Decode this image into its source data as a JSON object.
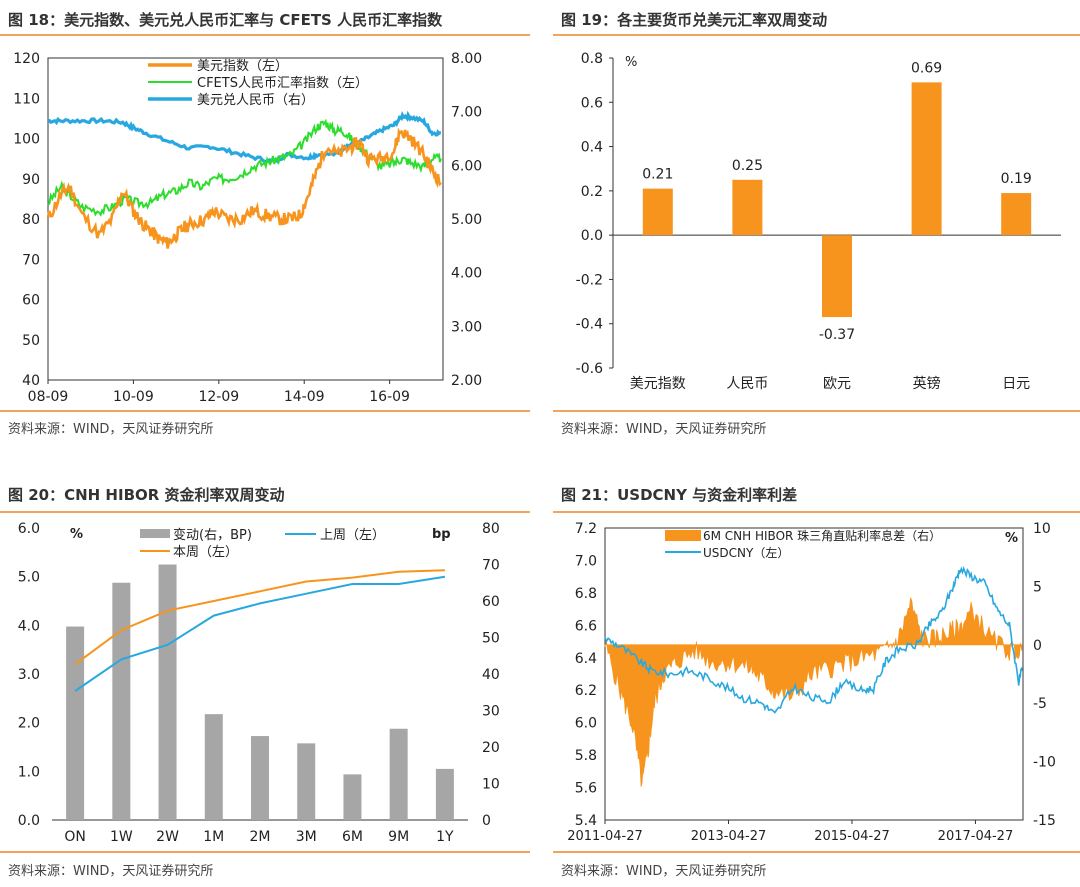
{
  "colors": {
    "orange": "#f7941d",
    "green": "#2cdd2c",
    "blue": "#29a8e0",
    "gray": "#a6a6a6",
    "rule": "#f2a55a"
  },
  "charts": [
    {
      "title": "图 18：美元指数、美元兑人民币汇率与 CFETS 人民币汇率指数",
      "source": "资料来源：WIND，天风证券研究所",
      "legend": [
        "美元指数（左）",
        "CFETS人民币汇率指数（左）",
        "美元兑人民币（右）"
      ],
      "left_ticks": [
        "120",
        "110",
        "100",
        "90",
        "80",
        "70",
        "60",
        "50",
        "40"
      ],
      "right_ticks": [
        "8.00",
        "7.00",
        "6.00",
        "5.00",
        "4.00",
        "3.00",
        "2.00"
      ],
      "x_ticks": [
        "08-09",
        "10-09",
        "12-09",
        "14-09",
        "16-09"
      ]
    },
    {
      "title": "图 19：各主要货币兑美元汇率双周变动",
      "source": "资料来源：WIND，天风证券研究所",
      "unit": "%",
      "y_ticks": [
        "0.8",
        "0.6",
        "0.4",
        "0.2",
        "0.0",
        "-0.2",
        "-0.4",
        "-0.6"
      ],
      "value_labels": [
        "0.21",
        "0.25",
        "-0.37",
        "0.69",
        "0.19"
      ]
    },
    {
      "title": "图 20：CNH HIBOR 资金利率双周变动",
      "source": "资料来源：WIND，天风证券研究所",
      "left_unit": "%",
      "right_unit": "bp",
      "legend": [
        "变动(右，BP)",
        "上周（左）",
        "本周（左）"
      ],
      "left_ticks": [
        "6.0",
        "5.0",
        "4.0",
        "3.0",
        "2.0",
        "1.0",
        "0.0"
      ],
      "right_ticks": [
        "80",
        "70",
        "60",
        "50",
        "40",
        "30",
        "20",
        "10",
        "0"
      ]
    },
    {
      "title": "图 21：USDCNY 与资金利率利差",
      "source": "资料来源：WIND，天风证券研究所",
      "right_unit": "%",
      "legend": [
        "6M CNH HIBOR 珠三角直贴利率息差（右）",
        "USDCNY（左）"
      ],
      "left_ticks": [
        "7.2",
        "7.0",
        "6.8",
        "6.6",
        "6.4",
        "6.2",
        "6.0",
        "5.8",
        "5.6",
        "5.4"
      ],
      "right_ticks": [
        "10",
        "5",
        "0",
        "-5",
        "-10",
        "-15"
      ],
      "x_ticks": [
        "2011-04-27",
        "2013-04-27",
        "2015-04-27",
        "2017-04-27"
      ]
    }
  ],
  "chart_data": [
    {
      "type": "line",
      "title": "图 18：美元指数、美元兑人民币汇率与 CFETS 人民币汇率指数",
      "x_range": [
        "2008-09",
        "2017-12"
      ],
      "y_left_range": [
        40,
        120
      ],
      "y_right_range": [
        2.0,
        8.0
      ],
      "series": [
        {
          "name": "美元指数（左）",
          "axis": "left",
          "x": [
            2008.7,
            2009.0,
            2009.2,
            2009.5,
            2009.9,
            2010.2,
            2010.45,
            2010.7,
            2010.9,
            2011.1,
            2011.3,
            2011.5,
            2011.7,
            2011.9,
            2012.1,
            2012.4,
            2012.6,
            2012.9,
            2013.2,
            2013.5,
            2013.8,
            2014.1,
            2014.4,
            2014.6,
            2014.8,
            2015.0,
            2015.2,
            2015.5,
            2015.8,
            2016.0,
            2016.2,
            2016.5,
            2016.8,
            2016.95,
            2017.2,
            2017.5,
            2017.7,
            2017.9
          ],
          "values": [
            80,
            86,
            88,
            81,
            76,
            80,
            87,
            82,
            79,
            77,
            75,
            74,
            76,
            78,
            79,
            80,
            82,
            80,
            80,
            82,
            81,
            80,
            80,
            81,
            86,
            92,
            98,
            96,
            98,
            99,
            95,
            95,
            97,
            102,
            100,
            96,
            92,
            89
          ]
        },
        {
          "name": "CFETS人民币汇率指数（左）",
          "axis": "left",
          "x": [
            2008.7,
            2009.0,
            2009.2,
            2009.5,
            2009.9,
            2010.2,
            2010.5,
            2010.8,
            2011.1,
            2011.4,
            2011.7,
            2012.0,
            2012.3,
            2012.6,
            2012.9,
            2013.2,
            2013.5,
            2013.8,
            2014.1,
            2014.4,
            2014.7,
            2015.0,
            2015.2,
            2015.4,
            2015.6,
            2015.8,
            2016.0,
            2016.2,
            2016.5,
            2016.8,
            2017.0,
            2017.2,
            2017.5,
            2017.7,
            2017.9
          ],
          "values": [
            84,
            88,
            86,
            83,
            82,
            83,
            85,
            84,
            84,
            86,
            87,
            89,
            88,
            90,
            90,
            91,
            93,
            94,
            95,
            96,
            99,
            103,
            104,
            102,
            102,
            100,
            98,
            96,
            93,
            94,
            95,
            94,
            93,
            95,
            95
          ]
        },
        {
          "name": "美元兑人民币（右）",
          "axis": "right",
          "x": [
            2008.7,
            2009.0,
            2009.5,
            2010.0,
            2010.45,
            2010.7,
            2011.0,
            2011.5,
            2012.0,
            2012.5,
            2013.0,
            2013.5,
            2014.0,
            2014.3,
            2014.8,
            2015.0,
            2015.5,
            2015.65,
            2015.9,
            2016.2,
            2016.5,
            2016.8,
            2017.0,
            2017.2,
            2017.5,
            2017.7,
            2017.9
          ],
          "values": [
            6.83,
            6.83,
            6.83,
            6.83,
            6.8,
            6.7,
            6.6,
            6.45,
            6.32,
            6.35,
            6.25,
            6.15,
            6.07,
            6.2,
            6.14,
            6.2,
            6.21,
            6.36,
            6.4,
            6.52,
            6.65,
            6.75,
            6.92,
            6.9,
            6.82,
            6.6,
            6.6
          ]
        }
      ]
    },
    {
      "type": "bar",
      "title": "图 19：各主要货币兑美元汇率双周变动",
      "categories": [
        "美元指数",
        "人民币",
        "欧元",
        "英镑",
        "日元"
      ],
      "values": [
        0.21,
        0.25,
        -0.37,
        0.69,
        0.19
      ],
      "ylabel": "%",
      "ylim": [
        -0.6,
        0.8
      ]
    },
    {
      "type": "bar",
      "title": "图 20：CNH HIBOR 资金利率双周变动",
      "categories": [
        "ON",
        "1W",
        "2W",
        "1M",
        "2M",
        "3M",
        "6M",
        "9M",
        "1Y"
      ],
      "y_left_range": [
        0,
        6
      ],
      "y_right_range": [
        0,
        80
      ],
      "series": [
        {
          "name": "变动(右，BP)",
          "axis": "right",
          "kind": "bar",
          "values": [
            53,
            65,
            70,
            29,
            23,
            21,
            12.5,
            25,
            14
          ]
        },
        {
          "name": "上周（左）",
          "axis": "left",
          "kind": "line",
          "values": [
            2.65,
            3.3,
            3.6,
            4.2,
            4.45,
            4.65,
            4.85,
            4.85,
            5.0
          ]
        },
        {
          "name": "本周（左）",
          "axis": "left",
          "kind": "line",
          "values": [
            3.2,
            3.9,
            4.3,
            4.5,
            4.7,
            4.9,
            4.98,
            5.1,
            5.13
          ]
        }
      ]
    },
    {
      "type": "area",
      "title": "图 21：USDCNY 与资金利率利差",
      "x_range": [
        "2011-03",
        "2018-01"
      ],
      "y_left_range": [
        5.4,
        7.2
      ],
      "y_right_range": [
        -15,
        10
      ],
      "series": [
        {
          "name": "6M CNH HIBOR 珠三角直贴利率息差（右）",
          "axis": "right",
          "kind": "area",
          "x": [
            2011.25,
            2011.5,
            2011.7,
            2011.85,
            2011.95,
            2012.05,
            2012.2,
            2012.4,
            2012.7,
            2013.0,
            2013.3,
            2013.6,
            2013.8,
            2014.0,
            2014.3,
            2014.6,
            2014.9,
            2015.2,
            2015.5,
            2015.8,
            2016.0,
            2016.2,
            2016.4,
            2016.6,
            2016.8,
            2017.0,
            2017.2,
            2017.5,
            2017.8,
            2018.0
          ],
          "values": [
            0,
            -4,
            -7,
            -12,
            -9,
            -5,
            -2.5,
            -1.5,
            -0.5,
            -1.5,
            -1.5,
            -2,
            -3,
            -4,
            -4.5,
            -2.5,
            -2,
            -1.5,
            -1,
            -0.5,
            0.5,
            3.5,
            0.5,
            0.5,
            1,
            1.5,
            3,
            0.5,
            -0.5,
            -0.5
          ]
        },
        {
          "name": "USDCNY（左）",
          "axis": "left",
          "kind": "line",
          "x": [
            2011.25,
            2011.5,
            2011.8,
            2012.0,
            2012.3,
            2012.6,
            2012.9,
            2013.2,
            2013.5,
            2013.8,
            2014.0,
            2014.3,
            2014.6,
            2014.9,
            2015.1,
            2015.4,
            2015.6,
            2015.8,
            2016.0,
            2016.3,
            2016.5,
            2016.7,
            2016.9,
            2017.0,
            2017.2,
            2017.4,
            2017.6,
            2017.8,
            2017.95,
            2018.0
          ],
          "values": [
            6.52,
            6.47,
            6.38,
            6.32,
            6.3,
            6.32,
            6.28,
            6.22,
            6.15,
            6.12,
            6.05,
            6.22,
            6.15,
            6.14,
            6.25,
            6.2,
            6.21,
            6.38,
            6.45,
            6.48,
            6.6,
            6.68,
            6.85,
            6.95,
            6.9,
            6.86,
            6.7,
            6.6,
            6.25,
            6.32
          ]
        }
      ]
    }
  ]
}
